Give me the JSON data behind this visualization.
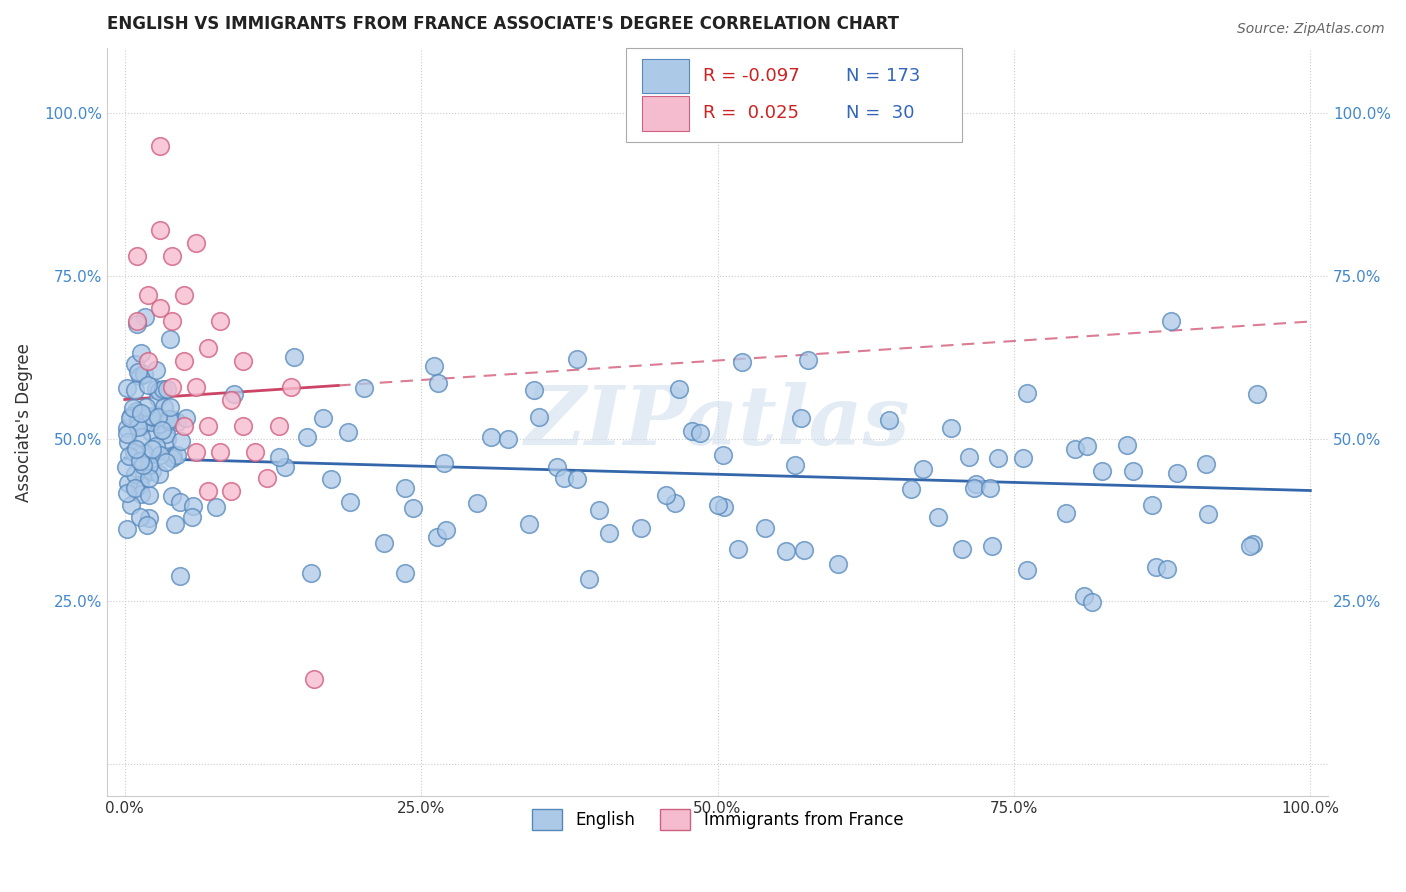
{
  "title": "ENGLISH VS IMMIGRANTS FROM FRANCE ASSOCIATE'S DEGREE CORRELATION CHART",
  "source_text": "Source: ZipAtlas.com",
  "ylabel": "Associate's Degree",
  "watermark": "ZIPatlas",
  "legend_R_english": "-0.097",
  "legend_N_english": "173",
  "legend_R_france": "0.025",
  "legend_N_france": "30",
  "xtick_labels": [
    "0.0%",
    "25.0%",
    "50.0%",
    "75.0%",
    "100.0%"
  ],
  "xtick_vals": [
    0.0,
    0.25,
    0.5,
    0.75,
    1.0
  ],
  "ytick_labels": [
    "25.0%",
    "50.0%",
    "75.0%",
    "100.0%"
  ],
  "ytick_vals": [
    0.25,
    0.5,
    0.75,
    1.0
  ],
  "english_color": "#adc9e8",
  "france_color": "#f5bcd0",
  "english_edge_color": "#5588bb",
  "france_edge_color": "#d06080",
  "trendline_english_color": "#3366aa",
  "trendline_france_color": "#cc4466",
  "title_fontsize": 12,
  "tick_fontsize": 11,
  "label_fontsize": 12,
  "legend_fontsize": 13
}
